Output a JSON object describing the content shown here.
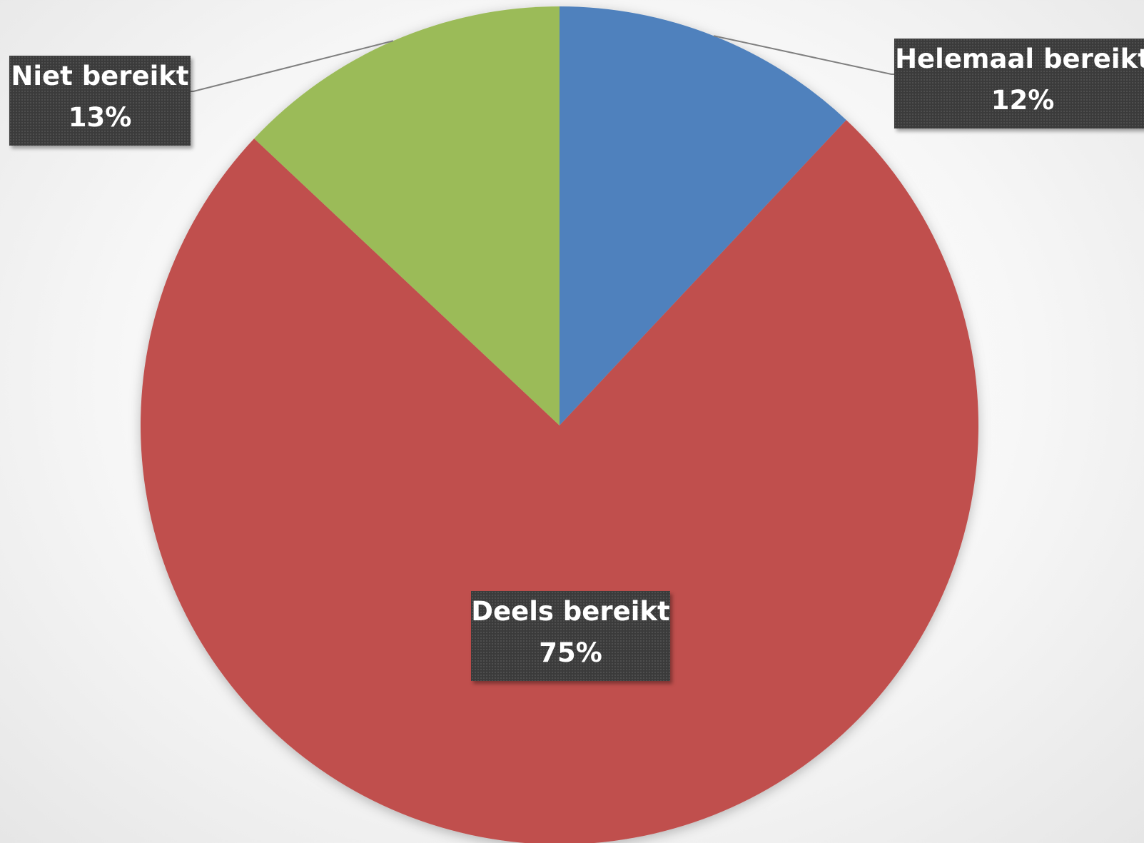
{
  "chart_data": {
    "type": "pie",
    "title": "",
    "legend": "none",
    "slices": [
      {
        "name": "Helemaal bereikt",
        "value": 12,
        "value_label": "12%",
        "color": "#4f81bd"
      },
      {
        "name": "Deels bereikt",
        "value": 75,
        "value_label": "75%",
        "color": "#c0504d"
      },
      {
        "name": "Niet bereikt",
        "value": 13,
        "value_label": "13%",
        "color": "#9bbb59"
      }
    ]
  }
}
